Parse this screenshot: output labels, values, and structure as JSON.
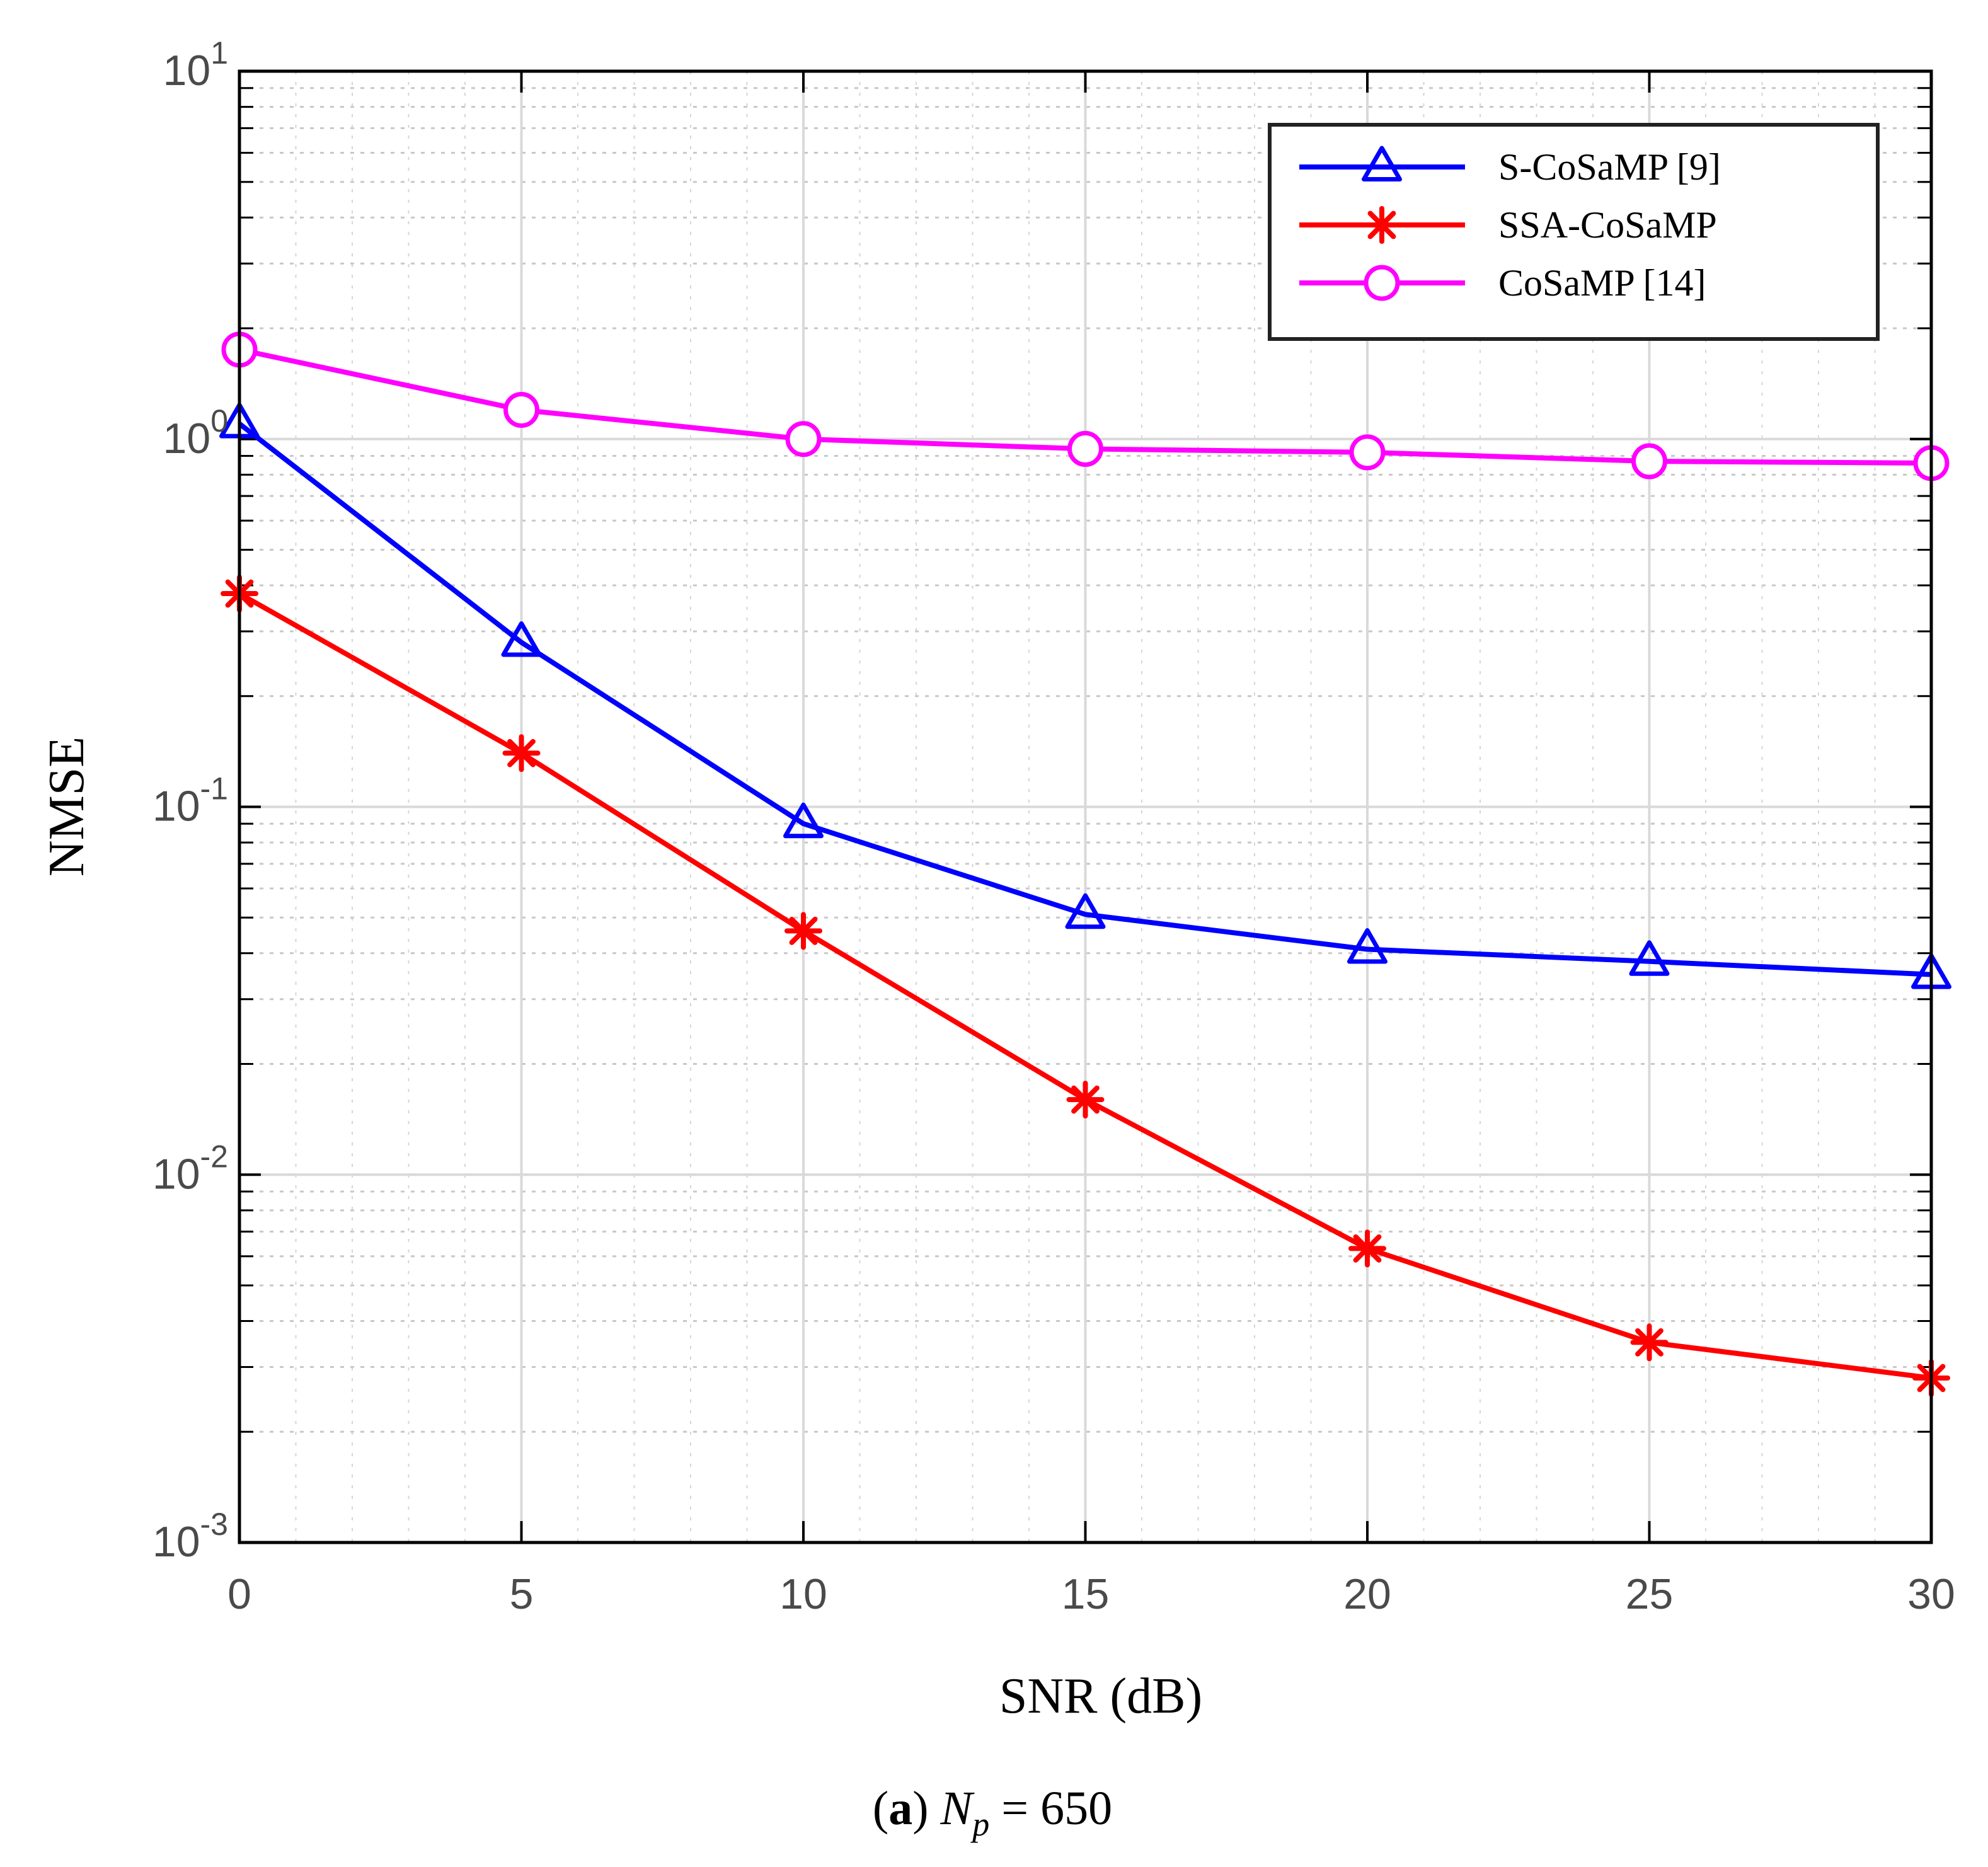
{
  "chart_data": {
    "type": "line",
    "xscale": "linear",
    "yscale": "log",
    "xlabel": "SNR (dB)",
    "ylabel": "NMSE",
    "x": [
      0,
      5,
      10,
      15,
      20,
      25,
      30
    ],
    "xlim": [
      0,
      30
    ],
    "ylim": [
      0.001,
      10
    ],
    "xticks": [
      "0",
      "5",
      "10",
      "15",
      "20",
      "25",
      "30"
    ],
    "yticks": [
      {
        "base": "10",
        "exp": "-3",
        "value": 0.001
      },
      {
        "base": "10",
        "exp": "-2",
        "value": 0.01
      },
      {
        "base": "10",
        "exp": "-1",
        "value": 0.1
      },
      {
        "base": "10",
        "exp": "0",
        "value": 1
      },
      {
        "base": "10",
        "exp": "1",
        "value": 10
      }
    ],
    "grid": true,
    "legend_position": "top-right",
    "series": [
      {
        "name": "S-CoSaMP [9]",
        "color": "#0000ff",
        "marker": "triangle",
        "values": [
          1.1,
          0.28,
          0.09,
          0.051,
          0.041,
          0.038,
          0.035
        ]
      },
      {
        "name": "SSA-CoSaMP",
        "color": "#ff0000",
        "marker": "asterisk",
        "values": [
          0.38,
          0.14,
          0.046,
          0.016,
          0.0063,
          0.0035,
          0.0028
        ]
      },
      {
        "name": "CoSaMP [14]",
        "color": "#ff00ff",
        "marker": "circle",
        "values": [
          1.75,
          1.2,
          1.0,
          0.94,
          0.92,
          0.87,
          0.86
        ]
      }
    ]
  },
  "caption": {
    "label": "a",
    "variable": "N",
    "subscript": "p",
    "equals": "=",
    "value": "650"
  }
}
